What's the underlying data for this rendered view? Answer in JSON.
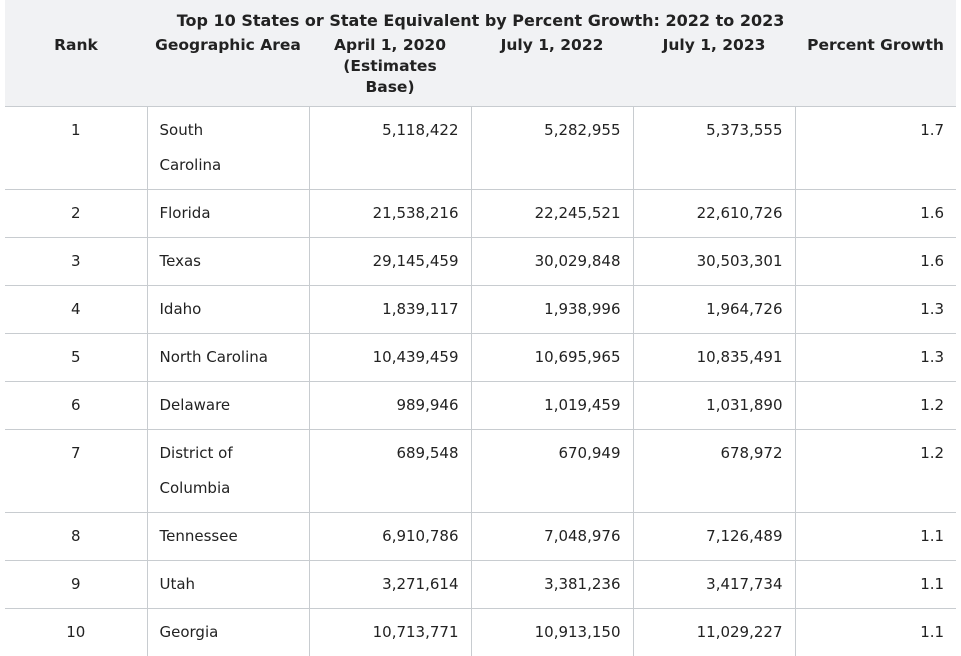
{
  "table": {
    "title": "Top 10 States or State Equivalent by Percent Growth: 2022 to 2023",
    "headers": [
      "Rank",
      "Geographic Area",
      "April 1, 2020 (Estimates Base)",
      "July 1, 2022",
      "July 1, 2023",
      "Percent Growth"
    ],
    "rows": [
      [
        "1",
        "South Carolina",
        "5,118,422",
        "5,282,955",
        "5,373,555",
        "1.7"
      ],
      [
        "2",
        "Florida",
        "21,538,216",
        "22,245,521",
        "22,610,726",
        "1.6"
      ],
      [
        "3",
        "Texas",
        "29,145,459",
        "30,029,848",
        "30,503,301",
        "1.6"
      ],
      [
        "4",
        "Idaho",
        "1,839,117",
        "1,938,996",
        "1,964,726",
        "1.3"
      ],
      [
        "5",
        "North Carolina",
        "10,439,459",
        "10,695,965",
        "10,835,491",
        "1.3"
      ],
      [
        "6",
        "Delaware",
        "989,946",
        "1,019,459",
        "1,031,890",
        "1.2"
      ],
      [
        "7",
        "District of Columbia",
        "689,548",
        "670,949",
        "678,972",
        "1.2"
      ],
      [
        "8",
        "Tennessee",
        "6,910,786",
        "7,048,976",
        "7,126,489",
        "1.1"
      ],
      [
        "9",
        "Utah",
        "3,271,614",
        "3,381,236",
        "3,417,734",
        "1.1"
      ],
      [
        "10",
        "Georgia",
        "10,713,771",
        "10,913,150",
        "11,029,227",
        "1.1"
      ]
    ]
  }
}
